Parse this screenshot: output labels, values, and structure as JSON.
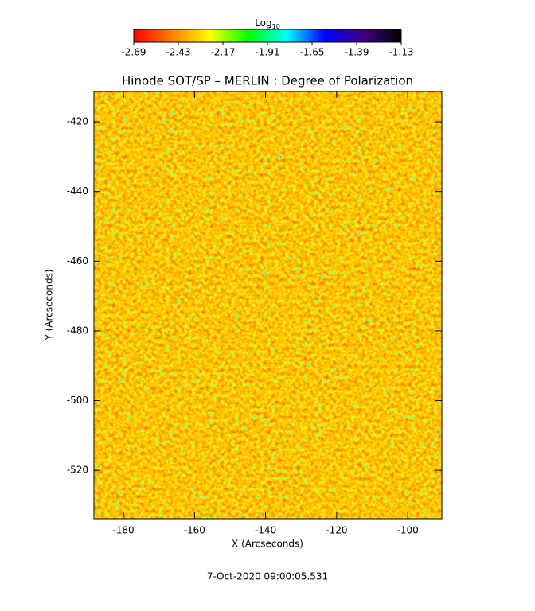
{
  "chart_data": {
    "type": "heatmap",
    "title": "Hinode SOT/SP – MERLIN : Degree of Polarization",
    "colorbar_label": "Log",
    "colorbar_label_subscript": "10",
    "clim": [
      -2.69,
      -1.13
    ],
    "colorbar_ticks": [
      -2.69,
      -2.43,
      -2.17,
      -1.91,
      -1.65,
      -1.39,
      -1.13
    ],
    "colormap": [
      "#ff0000",
      "#ff8000",
      "#ffff00",
      "#00ff00",
      "#00ffff",
      "#0000ff",
      "#400080",
      "#000000"
    ],
    "x_label": "X (Arcseconds)",
    "y_label": "Y (Arcseconds)",
    "xlim": [
      -188.3,
      -90.4
    ],
    "xticks": [
      -180,
      -160,
      -140,
      -120,
      -100
    ],
    "ylim": [
      -533.9,
      -411.3
    ],
    "yticks": [
      -420,
      -440,
      -460,
      -480,
      -500,
      -520
    ],
    "footer": "7-Oct-2020 09:00:05.531"
  }
}
